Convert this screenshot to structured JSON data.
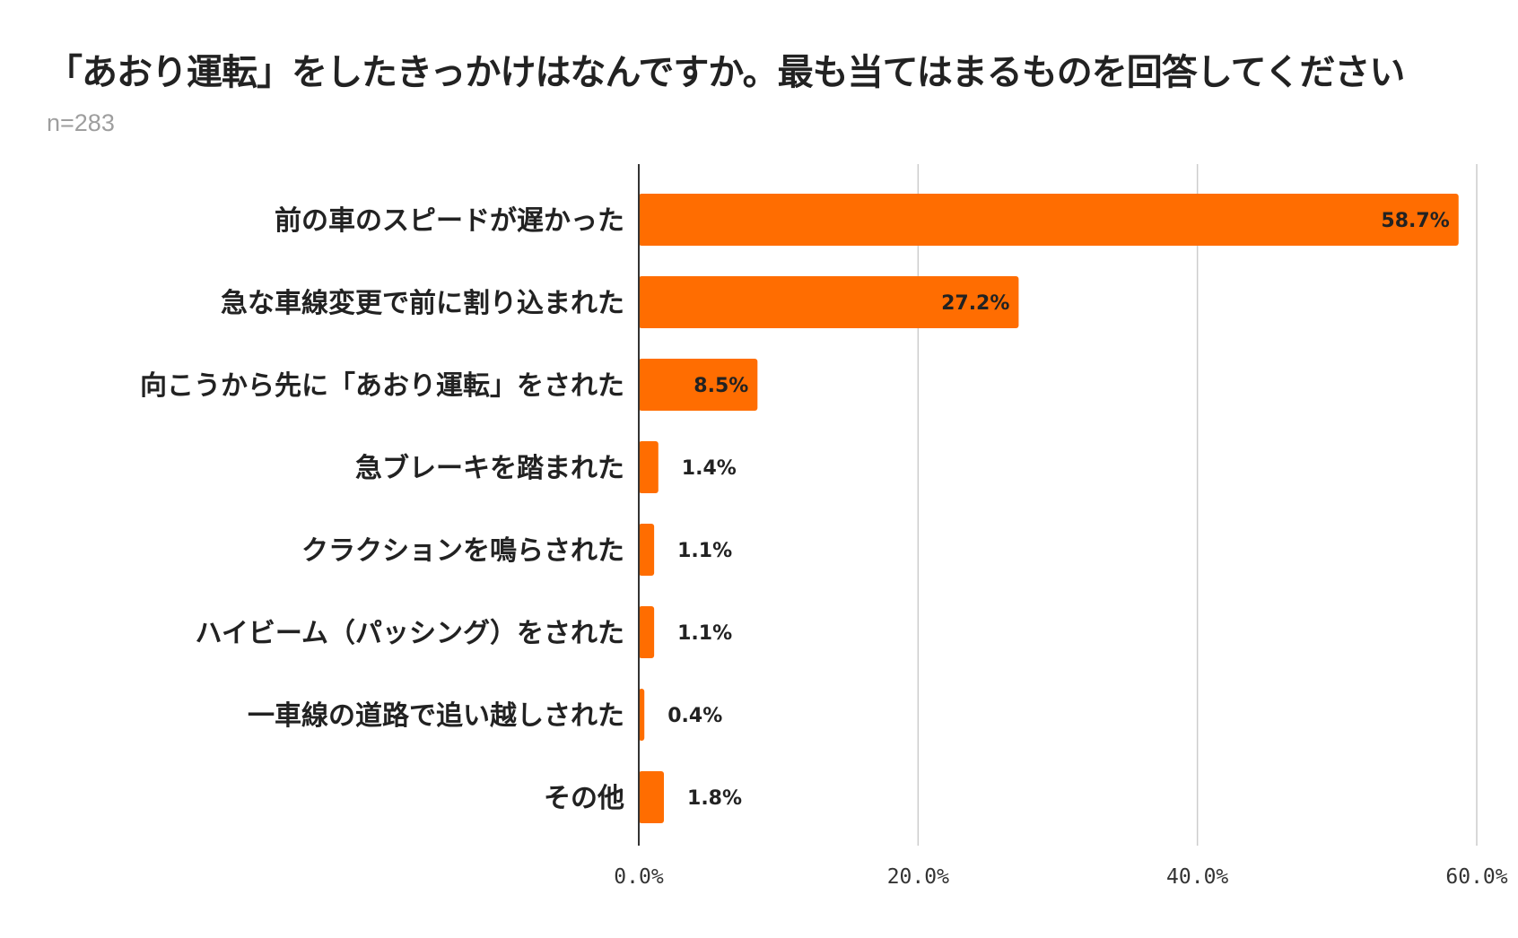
{
  "chart_data": {
    "type": "bar",
    "orientation": "horizontal",
    "title": "「あおり運転」をしたきっかけはなんですか。最も当てはまるものを回答してください",
    "subtitle": "n=283",
    "categories": [
      "前の車のスピードが遅かった",
      "急な車線変更で前に割り込まれた",
      "向こうから先に「あおり運転」をされた",
      "急ブレーキを踏まれた",
      "クラクションを鳴らされた",
      "ハイビーム（パッシング）をされた",
      "一車線の道路で追い越しされた",
      "その他"
    ],
    "values": [
      58.7,
      27.2,
      8.5,
      1.4,
      1.1,
      1.1,
      0.4,
      1.8
    ],
    "data_labels": [
      "58.7%",
      "27.2%",
      "8.5%",
      "1.4%",
      "1.1%",
      "1.1%",
      "0.4%",
      "1.8%"
    ],
    "x_ticks": [
      0,
      20,
      40,
      60
    ],
    "x_tick_labels": [
      "0.0%",
      "20.0%",
      "40.0%",
      "60.0%"
    ],
    "xlim": [
      0,
      60
    ],
    "grid": true,
    "legend": "none",
    "bar_color": "#ff6d01",
    "xlabel": "",
    "ylabel": ""
  }
}
